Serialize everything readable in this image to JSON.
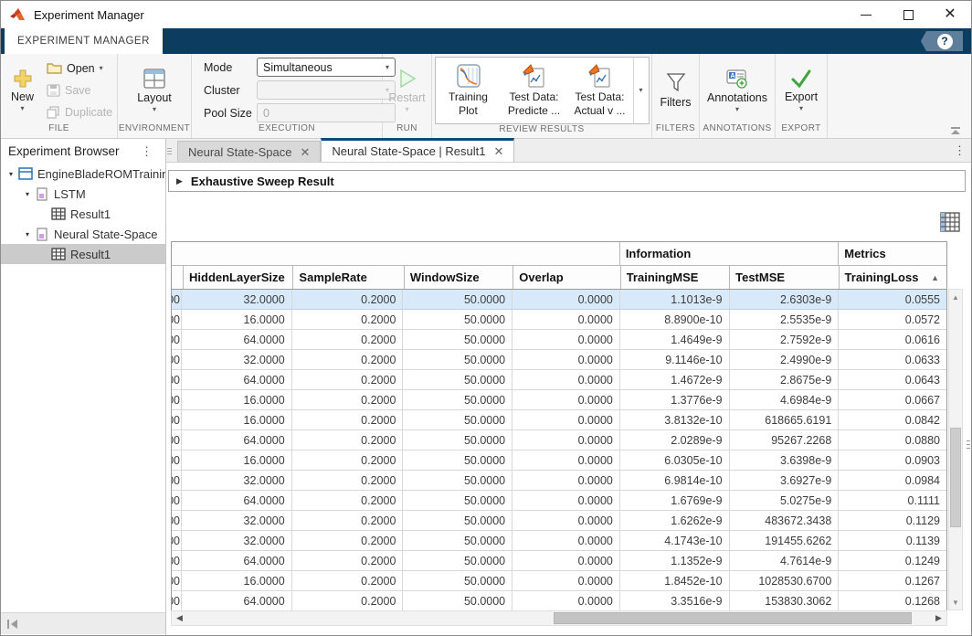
{
  "window": {
    "title": "Experiment Manager"
  },
  "ribbon": {
    "tab_label": "EXPERIMENT MANAGER"
  },
  "toolbar": {
    "file": {
      "section_label": "FILE",
      "new_label": "New",
      "open_label": "Open",
      "save_label": "Save",
      "duplicate_label": "Duplicate"
    },
    "environment": {
      "section_label": "ENVIRONMENT",
      "layout_label": "Layout"
    },
    "execution": {
      "section_label": "EXECUTION",
      "mode_label": "Mode",
      "mode_value": "Simultaneous",
      "cluster_label": "Cluster",
      "cluster_value": "",
      "pool_size_label": "Pool Size",
      "pool_size_value": "0"
    },
    "run": {
      "section_label": "RUN",
      "restart_label": "Restart"
    },
    "review_results": {
      "section_label": "REVIEW RESULTS",
      "items": [
        {
          "icon": "training-plot-icon",
          "line1": "Training",
          "line2": "Plot"
        },
        {
          "icon": "test-data-icon",
          "line1": "Test Data:",
          "line2": "Predicte ..."
        },
        {
          "icon": "test-data-icon",
          "line1": "Test Data:",
          "line2": "Actual v ..."
        }
      ]
    },
    "filters": {
      "section_label": "FILTERS",
      "filters_label": "Filters"
    },
    "annotations": {
      "section_label": "ANNOTATIONS",
      "annotations_label": "Annotations"
    },
    "export": {
      "section_label": "EXPORT",
      "export_label": "Export"
    }
  },
  "sidebar": {
    "title": "Experiment Browser",
    "tree": [
      {
        "label": "EngineBladeROMTraining",
        "type": "project",
        "expanded": true,
        "selected": false
      },
      {
        "label": "LSTM",
        "type": "experiment",
        "expanded": true,
        "selected": false
      },
      {
        "label": "Result1",
        "type": "result",
        "expanded": false,
        "selected": false
      },
      {
        "label": "Neural State-Space",
        "type": "experiment",
        "expanded": true,
        "selected": false
      },
      {
        "label": "Result1",
        "type": "result",
        "expanded": false,
        "selected": true
      }
    ]
  },
  "doc_tabs": [
    {
      "label": "Neural State-Space",
      "active": false
    },
    {
      "label": "Neural State-Space | Result1",
      "active": true
    }
  ],
  "result_panel": {
    "title": "Exhaustive Sweep Result"
  },
  "table": {
    "group_headers": [
      {
        "label": "",
        "span": 5
      },
      {
        "label": "Information",
        "span": 2
      },
      {
        "label": "Metrics",
        "span": 1
      }
    ],
    "columns": [
      "",
      "HiddenLayerSize",
      "SampleRate",
      "WindowSize",
      "Overlap",
      "TrainingMSE",
      "TestMSE",
      "TrainingLoss"
    ],
    "sort": {
      "column": "TrainingLoss",
      "direction": "ascending"
    },
    "selected_row_index": 0,
    "rows": [
      [
        "00",
        "32.0000",
        "0.2000",
        "50.0000",
        "0.0000",
        "1.1013e-9",
        "2.6303e-9",
        "0.0555"
      ],
      [
        "00",
        "16.0000",
        "0.2000",
        "50.0000",
        "0.0000",
        "8.8900e-10",
        "2.5535e-9",
        "0.0572"
      ],
      [
        "00",
        "64.0000",
        "0.2000",
        "50.0000",
        "0.0000",
        "1.4649e-9",
        "2.7592e-9",
        "0.0616"
      ],
      [
        "00",
        "32.0000",
        "0.2000",
        "50.0000",
        "0.0000",
        "9.1146e-10",
        "2.4990e-9",
        "0.0633"
      ],
      [
        "00",
        "64.0000",
        "0.2000",
        "50.0000",
        "0.0000",
        "1.4672e-9",
        "2.8675e-9",
        "0.0643"
      ],
      [
        "00",
        "16.0000",
        "0.2000",
        "50.0000",
        "0.0000",
        "1.3776e-9",
        "4.6984e-9",
        "0.0667"
      ],
      [
        "00",
        "16.0000",
        "0.2000",
        "50.0000",
        "0.0000",
        "3.8132e-10",
        "618665.6191",
        "0.0842"
      ],
      [
        "00",
        "64.0000",
        "0.2000",
        "50.0000",
        "0.0000",
        "2.0289e-9",
        "95267.2268",
        "0.0880"
      ],
      [
        "00",
        "16.0000",
        "0.2000",
        "50.0000",
        "0.0000",
        "6.0305e-10",
        "3.6398e-9",
        "0.0903"
      ],
      [
        "00",
        "32.0000",
        "0.2000",
        "50.0000",
        "0.0000",
        "6.9814e-10",
        "3.6927e-9",
        "0.0984"
      ],
      [
        "00",
        "64.0000",
        "0.2000",
        "50.0000",
        "0.0000",
        "1.6769e-9",
        "5.0275e-9",
        "0.1111"
      ],
      [
        "00",
        "32.0000",
        "0.2000",
        "50.0000",
        "0.0000",
        "1.6262e-9",
        "483672.3438",
        "0.1129"
      ],
      [
        "00",
        "32.0000",
        "0.2000",
        "50.0000",
        "0.0000",
        "4.1743e-10",
        "191455.6262",
        "0.1139"
      ],
      [
        "00",
        "64.0000",
        "0.2000",
        "50.0000",
        "0.0000",
        "1.1352e-9",
        "4.7614e-9",
        "0.1249"
      ],
      [
        "00",
        "16.0000",
        "0.2000",
        "50.0000",
        "0.0000",
        "1.8452e-10",
        "1028530.6700",
        "0.1267"
      ],
      [
        "00",
        "64.0000",
        "0.2000",
        "50.0000",
        "0.0000",
        "3.3516e-9",
        "153830.3062",
        "0.1268"
      ]
    ]
  },
  "colors": {
    "ribbon_blue": "#0d3c61",
    "active_tab_stripe": "#0e4a7d",
    "selection_blue": "#d8e9f9",
    "matlab_orange": "#e8642c",
    "run_green": "#a6d8a6",
    "export_green": "#3fa33f"
  }
}
